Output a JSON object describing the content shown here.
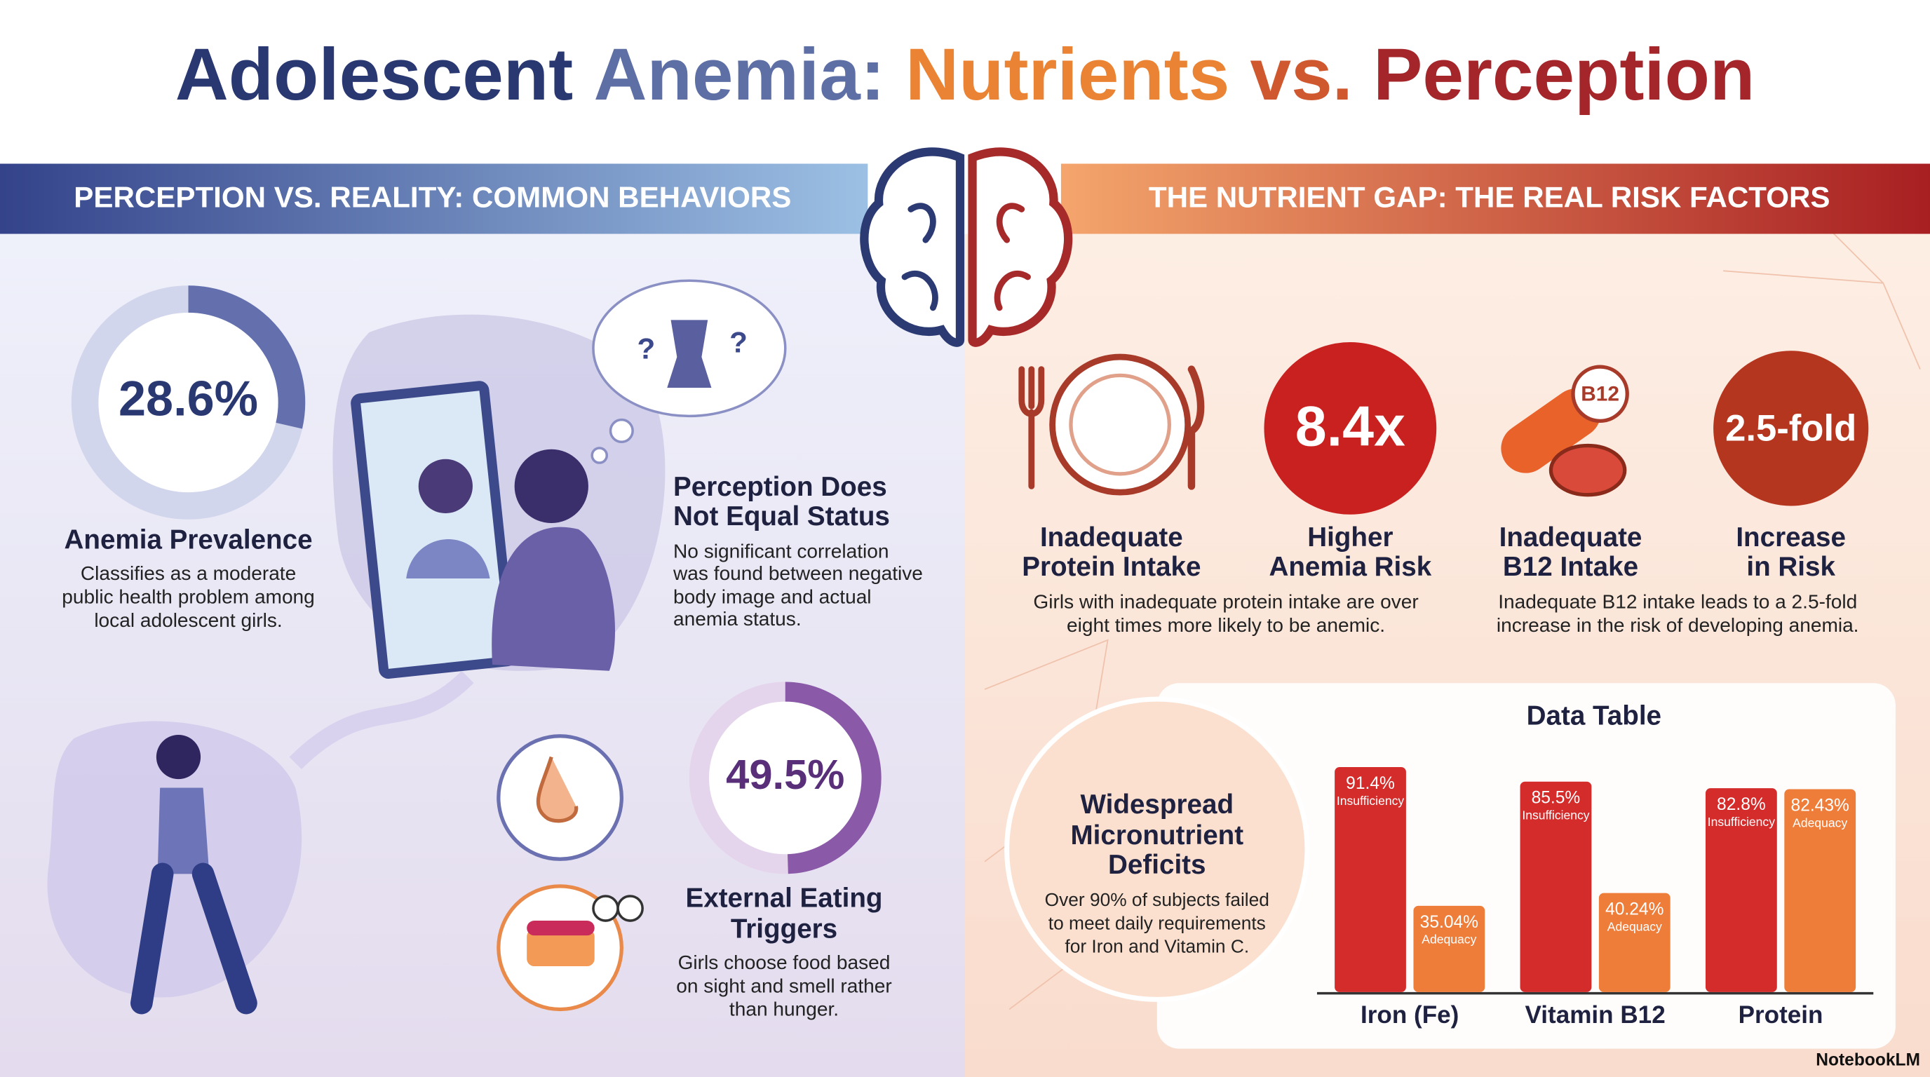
{
  "title": [
    "Adolescent",
    "Anemia:",
    "Nutrients",
    "vs.",
    "Perception"
  ],
  "left": {
    "header": "PERCEPTION VS. REALITY: COMMON BEHAVIORS",
    "prevalence": {
      "stat": {
        "value": 28.6,
        "label": "28.6%"
      },
      "title": "Anemia Prevalence",
      "text": [
        "Classifies as a moderate",
        "public health problem among",
        "local adolescent girls."
      ]
    },
    "bubble_marks": [
      "?",
      "?"
    ],
    "perception": {
      "title": [
        "Perception Does",
        "Not Equal Status"
      ],
      "text": [
        "No significant correlation",
        "was found between negative",
        "body image and actual",
        "anemia status."
      ]
    },
    "triggers": {
      "stat": {
        "value": 49.5,
        "label": "49.5%"
      },
      "title": [
        "External Eating",
        "Triggers"
      ],
      "text": [
        "Girls choose food based",
        "on sight and smell rather",
        "than hunger."
      ]
    }
  },
  "right": {
    "header": "THE NUTRIENT GAP: THE REAL RISK FACTORS",
    "factors": [
      {
        "title": [
          "Inadequate",
          "Protein Intake"
        ]
      },
      {
        "badge": "8.4x",
        "title": [
          "Higher",
          "Anemia Risk"
        ]
      },
      {
        "icon_text": "B12",
        "title": [
          "Inadequate",
          "B12 Intake"
        ]
      },
      {
        "badge": "2.5-fold",
        "title": [
          "Increase",
          "in Risk"
        ]
      }
    ],
    "notes": [
      [
        "Girls with inadequate protein intake are over",
        "eight times more likely to be anemic."
      ],
      [
        "Inadequate B12 intake leads to a 2.5-fold",
        "increase in the risk of developing anemia."
      ]
    ],
    "deficits": {
      "title": [
        "Widespread",
        "Micronutrient",
        "Deficits"
      ],
      "text": [
        "Over 90% of subjects failed",
        "to meet daily requirements",
        "for Iron and Vitamin C."
      ]
    }
  },
  "chart_data": {
    "type": "bar",
    "title": "Data Table",
    "categories": [
      "Iron (Fe)",
      "Vitamin B12",
      "Protein"
    ],
    "series": [
      {
        "name": "Insufficiency",
        "color": "#d42b2b",
        "values": [
          91.4,
          85.5,
          82.8
        ],
        "value_labels": [
          "91.4%",
          "85.5%",
          "82.8%"
        ]
      },
      {
        "name": "Adequacy",
        "color": "#ee7d3a",
        "values": [
          35.04,
          40.24,
          82.43
        ],
        "value_labels": [
          "35.04%",
          "40.24%",
          "82.43%"
        ]
      }
    ],
    "ylim": [
      0,
      100
    ]
  },
  "footer": "NotebookLM"
}
